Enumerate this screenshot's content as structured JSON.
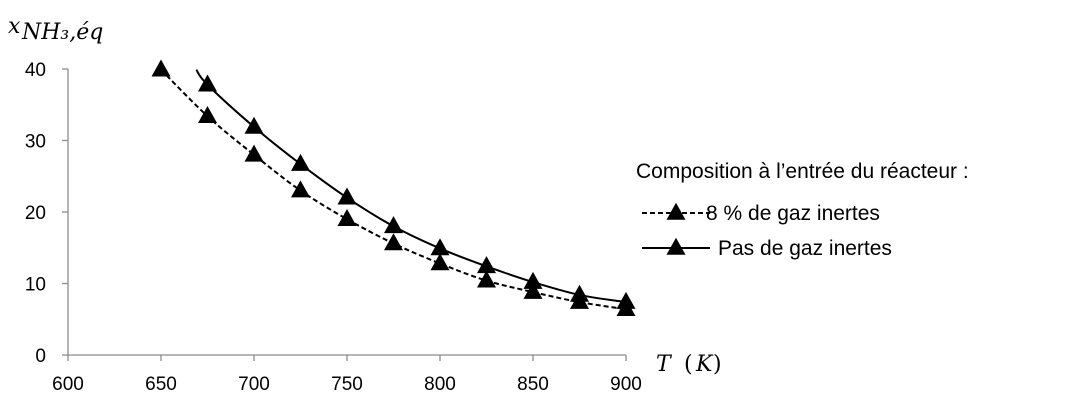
{
  "chart_data": {
    "type": "line",
    "title": "",
    "xlabel": "T (K)",
    "ylabel": "x_NH3,éq",
    "xlim": [
      600,
      900
    ],
    "ylim": [
      0,
      40
    ],
    "xticks": [
      "600",
      "650",
      "700",
      "750",
      "800",
      "850",
      "900"
    ],
    "yticks": [
      "0",
      "10",
      "20",
      "30",
      "40"
    ],
    "grid": false,
    "legend_title": "Composition à l’entrée du réacteur :",
    "legend_placement": "right",
    "series": [
      {
        "name": "8 % de gaz inertes",
        "style": "dashed",
        "marker": "triangle",
        "color": "#000000",
        "x": [
          650,
          675,
          700,
          725,
          750,
          775,
          800,
          825,
          850,
          875,
          900
        ],
        "y": [
          39.9,
          33.4,
          28.0,
          23.0,
          19.0,
          15.6,
          12.8,
          10.4,
          8.8,
          7.4,
          6.4
        ]
      },
      {
        "name": "Pas de gaz inertes",
        "style": "solid",
        "marker": "triangle",
        "color": "#000000",
        "x": [
          675,
          700,
          725,
          750,
          775,
          800,
          825,
          850,
          875,
          900
        ],
        "y": [
          37.8,
          31.9,
          26.7,
          22.0,
          18.0,
          14.9,
          12.4,
          10.2,
          8.4,
          7.4
        ],
        "line_start": [
          669,
          39.9
        ]
      }
    ]
  }
}
